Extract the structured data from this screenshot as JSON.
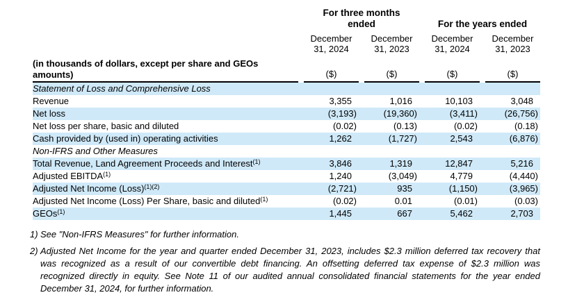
{
  "table": {
    "period_headers": [
      {
        "label": "For three months ended"
      },
      {
        "label": "For the years ended"
      }
    ],
    "row_header_label": "(in thousands of dollars, except per share and GEOs amounts)",
    "columns": [
      {
        "line1": "December",
        "line2": "31, 2024",
        "unit": "($)"
      },
      {
        "line1": "December",
        "line2": "31, 2023",
        "unit": "($)"
      },
      {
        "line1": "December",
        "line2": "31, 2024",
        "unit": "($)"
      },
      {
        "line1": "December",
        "line2": "31, 2023",
        "unit": "($)"
      }
    ],
    "rows": [
      {
        "label": "Statement of Loss and Comprehensive Loss",
        "type": "section"
      },
      {
        "label": "Revenue",
        "values": [
          "3,355",
          "1,016",
          "10,103",
          "3,048"
        ]
      },
      {
        "label": "Net loss",
        "values": [
          "(3,193)",
          "(19,360)",
          "(3,411)",
          "(26,756)"
        ]
      },
      {
        "label": "Net loss per share, basic and diluted",
        "values": [
          "(0.02)",
          "(0.13)",
          "(0.02)",
          "(0.18)"
        ]
      },
      {
        "label": "Cash provided by (used in) operating activities",
        "values": [
          "1,262",
          "(1,727)",
          "2,543",
          "(6,876)"
        ]
      },
      {
        "label": "Non-IFRS and Other Measures",
        "type": "section"
      },
      {
        "label": "Total Revenue, Land Agreement Proceeds and Interest",
        "sup": "(1)",
        "values": [
          "3,846",
          "1,319",
          "12,847",
          "5,216"
        ]
      },
      {
        "label": "Adjusted EBITDA",
        "sup": "(1)",
        "values": [
          "1,240",
          "(3,049)",
          "4,779",
          "(4,440)"
        ]
      },
      {
        "label": "Adjusted Net Income (Loss)",
        "sup": "(1)(2)",
        "values": [
          "(2,721)",
          "935",
          "(1,150)",
          "(3,965)"
        ]
      },
      {
        "label": "Adjusted Net Income (Loss) Per Share, basic and diluted",
        "sup": "(1)",
        "values": [
          "(0.02)",
          "0.01",
          "(0.01)",
          "(0.03)"
        ]
      },
      {
        "label": "GEOs",
        "sup": "(1)",
        "values": [
          "1,445",
          "667",
          "5,462",
          "2,703"
        ]
      }
    ]
  },
  "footnotes": [
    {
      "marker": "1)",
      "text": "See \"Non-IFRS Measures\" for further information."
    },
    {
      "marker": "2)",
      "text": "Adjusted Net Income for the year and quarter ended December 31, 2023, includes $2.3 million deferred tax recovery that was recognized as a result of our convertible debt financing. An offsetting deferred tax expense of $2.3 million was recognized directly in equity. See Note 11 of our audited annual consolidated financial statements for the year ended December 31, 2024, for further information."
    }
  ],
  "colors": {
    "stripe_blue": "#cfe9f8",
    "text": "#000000",
    "rule": "#000000",
    "background": "#ffffff"
  }
}
